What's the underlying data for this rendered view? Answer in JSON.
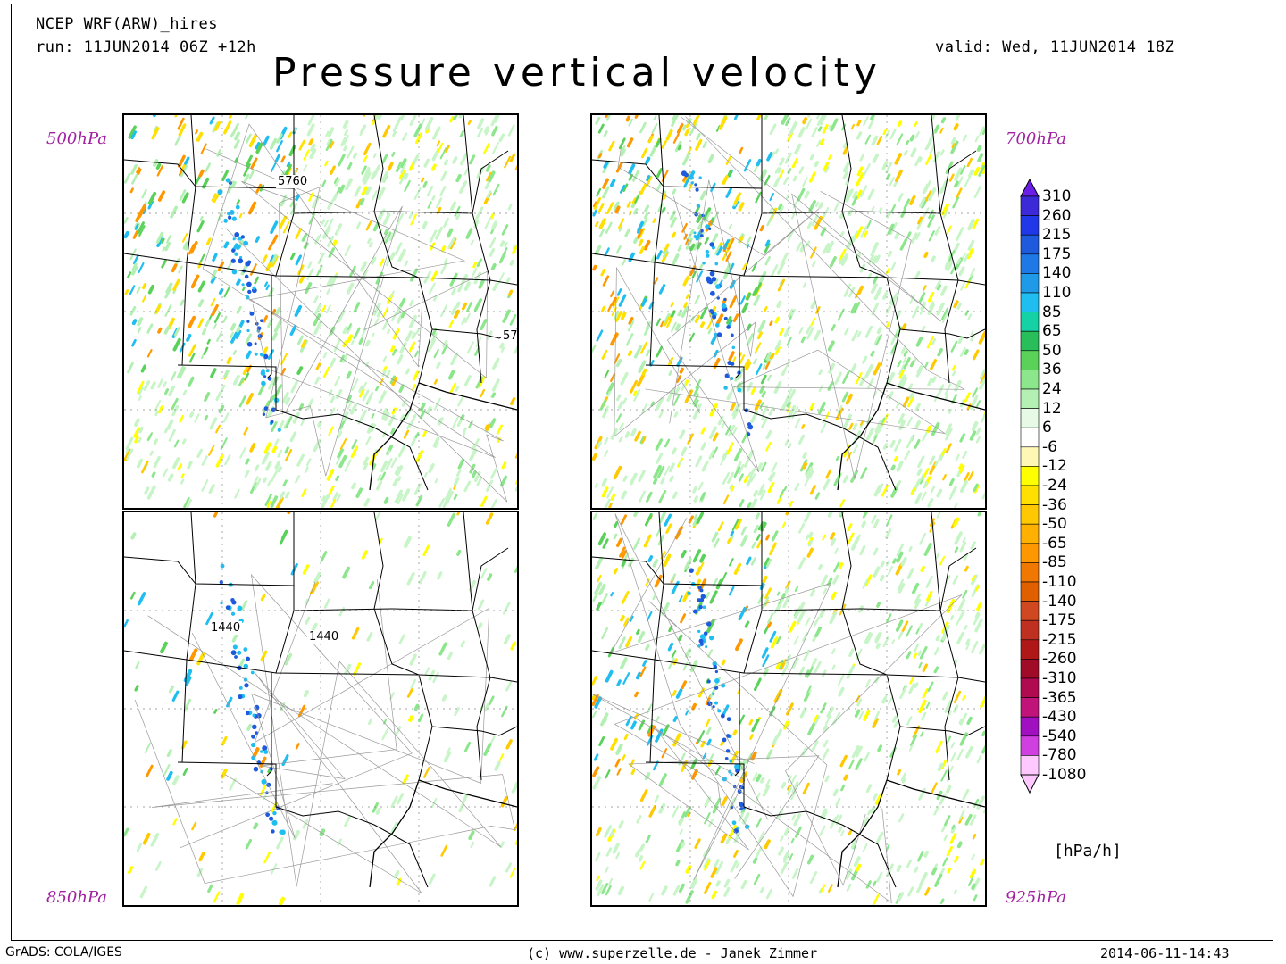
{
  "header": {
    "model": "NCEP WRF(ARW)_hires",
    "run": "run: 11JUN2014 06Z +12h",
    "valid": "valid: Wed, 11JUN2014 18Z",
    "title": "Pressure vertical velocity"
  },
  "panels": [
    {
      "level": "500hPa",
      "contour_labels": [
        "5760",
        "57"
      ]
    },
    {
      "level": "700hPa",
      "contour_labels": []
    },
    {
      "level": "850hPa",
      "contour_labels": [
        "1440",
        "1440"
      ]
    },
    {
      "level": "925hPa",
      "contour_labels": []
    }
  ],
  "colorbar": {
    "unit": "[hPa/h]",
    "levels": [
      "310",
      "260",
      "215",
      "175",
      "140",
      "110",
      "85",
      "65",
      "50",
      "36",
      "24",
      "12",
      "6",
      "-6",
      "-12",
      "-24",
      "-36",
      "-50",
      "-65",
      "-85",
      "-110",
      "-140",
      "-175",
      "-215",
      "-260",
      "-310",
      "-365",
      "-430",
      "-540",
      "-780",
      "-1080"
    ],
    "colors": [
      "#6a1ee8",
      "#3c2ad8",
      "#2038e8",
      "#1e5adc",
      "#1e78e6",
      "#1e9ae8",
      "#20bef0",
      "#14d2a6",
      "#28be5a",
      "#5ad25a",
      "#8ce68c",
      "#b4f0b4",
      "#e6fae6",
      "#ffffff",
      "#fff8b4",
      "#ffff00",
      "#ffe000",
      "#ffc800",
      "#ffb000",
      "#ff9800",
      "#f07800",
      "#e06000",
      "#d04820",
      "#c03020",
      "#b01818",
      "#a00c28",
      "#b00a50",
      "#c0147a",
      "#a010c0",
      "#d040e0",
      "#ffc8ff"
    ]
  },
  "footer": {
    "left": "GrADS: COLA/IGES",
    "center": "(c) www.superzelle.de - Janek Zimmer",
    "right": "2014-06-11-14:43"
  }
}
